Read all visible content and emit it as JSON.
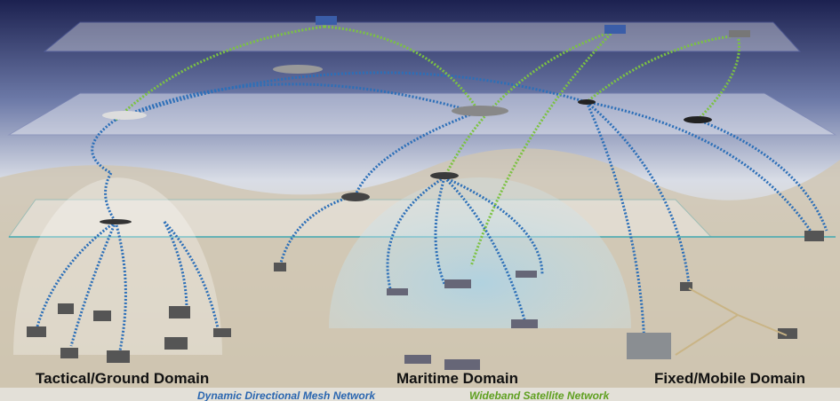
{
  "domains": [
    "Tactical/Ground Domain",
    "Maritime Domain",
    "Fixed/Mobile Domain"
  ],
  "legend": [
    "Dynamic Directional Mesh Network",
    "Wideband Satellite Network"
  ]
}
